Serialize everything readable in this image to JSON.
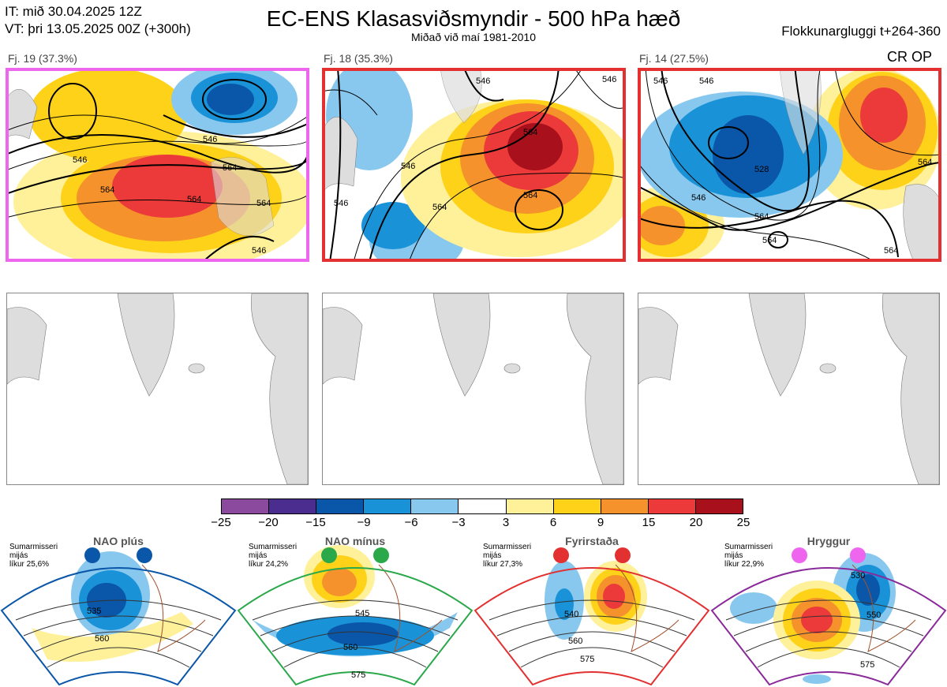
{
  "header": {
    "it_line": "IT: mið 30.04.2025 12Z",
    "vt_line": "VT: þri 13.05.2025 00Z  (+300h)",
    "title": "EC-ENS Klasasviðsmyndir - 500 hPa hæð",
    "subtitle": "Miðað við maí 1981-2010",
    "window": "Flokkunargluggi t+264-360"
  },
  "cr_op_label": "CR OP",
  "chart_data": [
    {
      "type": "heatmap",
      "title": "Fj. 19 (37.3%)",
      "frame_color": "#ee66ee",
      "contour_labels": [
        "546",
        "546",
        "564",
        "564",
        "564",
        "564",
        "546"
      ]
    },
    {
      "type": "heatmap",
      "title": "Fj. 18 (35.3%)",
      "frame_color": "#e33030",
      "contour_labels": [
        "546",
        "546",
        "546",
        "564",
        "564",
        "546",
        "564"
      ]
    },
    {
      "type": "heatmap",
      "title": "Fj. 14 (27.5%)",
      "frame_color": "#e33030",
      "contour_labels": [
        "546",
        "546",
        "528",
        "546",
        "564",
        "564",
        "564",
        "564"
      ]
    },
    {
      "type": "heatmap",
      "title": "Anomaly colour scale",
      "ticks": [
        "−25",
        "−20",
        "−15",
        "−9",
        "−6",
        "−3",
        "3",
        "6",
        "9",
        "15",
        "20",
        "25"
      ],
      "colors": [
        "#8b4a9e",
        "#4b2d8f",
        "#0a56a8",
        "#1a92d8",
        "#88c8ee",
        "#ffffff",
        "#fff09a",
        "#ffd21a",
        "#f5922c",
        "#ec3a3a",
        "#a8101c"
      ]
    },
    {
      "type": "heatmap",
      "title": "NAO plús",
      "season": "Sumarmisseri",
      "line2": "mijás",
      "probability": "líkur 25,6%",
      "regime_color": "#0a56a8",
      "contour_labels": [
        "535",
        "560"
      ]
    },
    {
      "type": "heatmap",
      "title": "NAO mínus",
      "season": "Sumarmisseri",
      "line2": "mijás",
      "probability": "líkur 24,2%",
      "regime_color": "#2aa84a",
      "contour_labels": [
        "545",
        "560",
        "575"
      ]
    },
    {
      "type": "heatmap",
      "title": "Fyrirstaða",
      "season": "Sumarmisseri",
      "line2": "mijás",
      "probability": "líkur 27,3%",
      "regime_color": "#e33030",
      "contour_labels": [
        "540",
        "560",
        "575"
      ]
    },
    {
      "type": "heatmap",
      "title": "Hryggur",
      "season": "Sumarmisseri",
      "line2": "mijás",
      "probability": "líkur 22,9%",
      "regime_color": "#8a2a9a",
      "contour_labels": [
        "530",
        "550",
        "575"
      ]
    }
  ]
}
